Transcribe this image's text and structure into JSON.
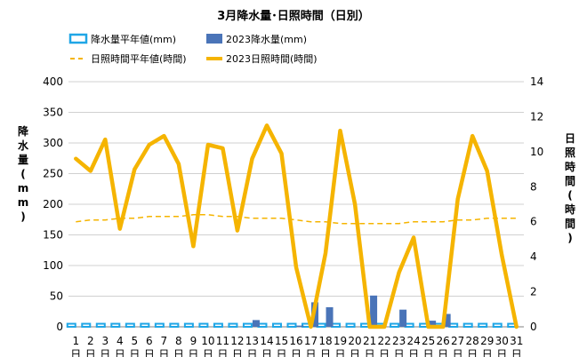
{
  "chart_data": {
    "type": "bar",
    "title": "3月降水量･日照時間（日別）",
    "categories": [
      "1",
      "2",
      "3",
      "4",
      "5",
      "6",
      "7",
      "8",
      "9",
      "10",
      "11",
      "12",
      "13",
      "14",
      "15",
      "16",
      "17",
      "18",
      "19",
      "20",
      "21",
      "22",
      "23",
      "24",
      "25",
      "26",
      "27",
      "28",
      "29",
      "30",
      "31"
    ],
    "x_tick_suffix": "日",
    "y_left": {
      "label": "降水量(mm)",
      "range": [
        0,
        400
      ],
      "ticks": [
        "0",
        "50",
        "100",
        "150",
        "200",
        "250",
        "300",
        "350",
        "400"
      ]
    },
    "y_right": {
      "label": "日照時間(時間)",
      "range": [
        0,
        14
      ],
      "ticks": [
        "0",
        "2",
        "4",
        "6",
        "8",
        "10",
        "12",
        "14"
      ]
    },
    "grid": "horizontal",
    "legend_position": "top",
    "series": [
      {
        "name": "降水量平年値(mm)",
        "type": "bar",
        "axis": "left",
        "style": "outline",
        "color": "#1fa6e6",
        "values": [
          5,
          5,
          5,
          5,
          5,
          5,
          5,
          5,
          5,
          5,
          5,
          5,
          5,
          5,
          5,
          5,
          5,
          5,
          5,
          5,
          5,
          5,
          5,
          5,
          5,
          5,
          5,
          5,
          5,
          5,
          5
        ]
      },
      {
        "name": "2023降水量(mm)",
        "type": "bar",
        "axis": "left",
        "style": "filled",
        "color": "#4a74b8",
        "values": [
          0,
          0,
          0,
          0,
          0,
          0,
          0,
          0,
          0,
          0,
          0,
          0,
          11,
          0,
          0,
          2,
          40,
          32,
          0,
          0,
          51,
          0,
          28,
          0,
          10,
          21,
          0,
          0,
          0,
          0,
          0
        ]
      },
      {
        "name": "日照時間平年値(時間)",
        "type": "line",
        "axis": "right",
        "style": "dashed",
        "color": "#f5b400",
        "values": [
          6.0,
          6.1,
          6.1,
          6.2,
          6.2,
          6.3,
          6.3,
          6.3,
          6.4,
          6.4,
          6.3,
          6.3,
          6.2,
          6.2,
          6.2,
          6.1,
          6.0,
          6.0,
          5.9,
          5.9,
          5.9,
          5.9,
          5.9,
          6.0,
          6.0,
          6.0,
          6.1,
          6.1,
          6.2,
          6.2,
          6.2
        ]
      },
      {
        "name": "2023日照時間(時間)",
        "type": "line",
        "axis": "right",
        "style": "solid",
        "color": "#f5b400",
        "values": [
          9.6,
          8.9,
          10.7,
          5.6,
          9.0,
          10.4,
          10.9,
          9.3,
          4.6,
          10.4,
          10.2,
          5.5,
          9.6,
          11.5,
          9.9,
          3.4,
          0.0,
          4.2,
          11.2,
          7.0,
          0.0,
          0.0,
          3.1,
          5.1,
          0.0,
          0.0,
          7.3,
          10.9,
          8.9,
          4.1,
          0.0
        ]
      }
    ]
  }
}
